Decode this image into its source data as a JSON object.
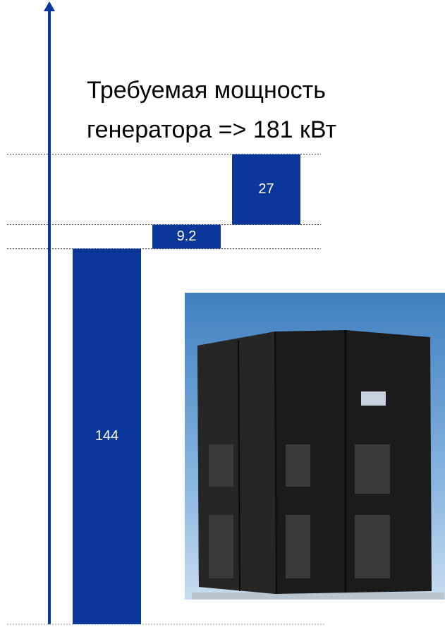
{
  "chart_data": {
    "type": "waterfall",
    "annotation": [
      "Требуемая мощность",
      "генератора => 181 кВт"
    ],
    "values": [
      144,
      9.2,
      27
    ],
    "color": "#0a3799",
    "ylim": [
      0,
      238
    ]
  }
}
